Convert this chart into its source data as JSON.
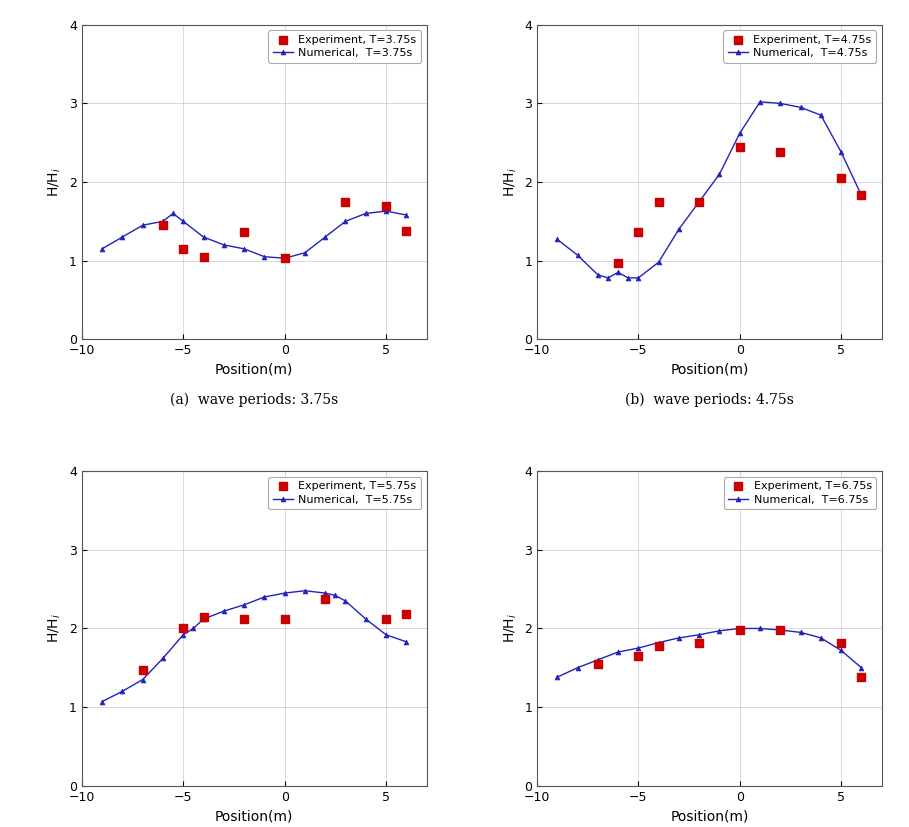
{
  "panels": [
    {
      "title": "Experiment, T=3.75s",
      "title2": "Numerical,  T=3.75s",
      "label": "(a)  wave periods: 3.75s",
      "exp_x": [
        -6,
        -5,
        -4,
        -2,
        0,
        3,
        5,
        6
      ],
      "exp_y": [
        1.45,
        1.15,
        1.05,
        1.37,
        1.03,
        1.75,
        1.7,
        1.38
      ],
      "num_x": [
        -9,
        -8,
        -7,
        -6,
        -5.5,
        -5,
        -4,
        -3,
        -2,
        -1,
        0,
        1,
        2,
        3,
        4,
        5,
        6
      ],
      "num_y": [
        1.15,
        1.3,
        1.45,
        1.5,
        1.6,
        1.5,
        1.3,
        1.2,
        1.15,
        1.05,
        1.03,
        1.1,
        1.3,
        1.5,
        1.6,
        1.63,
        1.58
      ]
    },
    {
      "title": "Experiment, T=4.75s",
      "title2": "Numerical,  T=4.75s",
      "label": "(b)  wave periods: 4.75s",
      "exp_x": [
        -6,
        -5,
        -4,
        -2,
        0,
        2,
        5,
        6
      ],
      "exp_y": [
        0.97,
        1.37,
        1.75,
        1.75,
        2.45,
        2.38,
        2.05,
        1.83
      ],
      "num_x": [
        -9,
        -8,
        -7,
        -6.5,
        -6,
        -5.5,
        -5,
        -4,
        -3,
        -2,
        -1,
        0,
        1,
        2,
        3,
        4,
        5,
        6
      ],
      "num_y": [
        1.27,
        1.07,
        0.82,
        0.78,
        0.85,
        0.78,
        0.78,
        0.98,
        1.4,
        1.75,
        2.1,
        2.62,
        3.02,
        3.0,
        2.95,
        2.85,
        2.38,
        1.83
      ]
    },
    {
      "title": "Experiment, T=5.75s",
      "title2": "Numerical,  T=5.75s",
      "label": "(c)  wave periods: 5.75s",
      "exp_x": [
        -7,
        -5,
        -4,
        -2,
        0,
        2,
        5,
        6
      ],
      "exp_y": [
        1.47,
        2.0,
        2.15,
        2.12,
        2.12,
        2.38,
        2.12,
        2.18
      ],
      "num_x": [
        -9,
        -8,
        -7,
        -6,
        -5,
        -4.5,
        -4,
        -3,
        -2,
        -1,
        0,
        1,
        2,
        2.5,
        3,
        4,
        5,
        6
      ],
      "num_y": [
        1.07,
        1.2,
        1.35,
        1.62,
        1.92,
        2.0,
        2.12,
        2.22,
        2.3,
        2.4,
        2.45,
        2.48,
        2.45,
        2.42,
        2.35,
        2.12,
        1.92,
        1.83
      ]
    },
    {
      "title": "Experiment, T=6.75s",
      "title2": "Numerical,  T=6.75s",
      "label": "(d)  wave periods: 6.75s",
      "exp_x": [
        -7,
        -5,
        -4,
        -2,
        0,
        2,
        5,
        6
      ],
      "exp_y": [
        1.55,
        1.65,
        1.78,
        1.82,
        1.98,
        1.98,
        1.82,
        1.38
      ],
      "num_x": [
        -9,
        -8,
        -7,
        -6,
        -5,
        -4,
        -3,
        -2,
        -1,
        0,
        1,
        2,
        3,
        4,
        5,
        6
      ],
      "num_y": [
        1.38,
        1.5,
        1.6,
        1.7,
        1.75,
        1.82,
        1.88,
        1.92,
        1.97,
        2.0,
        2.0,
        1.98,
        1.95,
        1.88,
        1.72,
        1.5
      ]
    }
  ],
  "xlim": [
    -10,
    7
  ],
  "ylim": [
    0,
    4
  ],
  "xticks": [
    -10,
    -5,
    0,
    5
  ],
  "yticks": [
    0,
    1,
    2,
    3,
    4
  ],
  "xlabel": "Position(m)",
  "ylabel": "H/H$_i$",
  "exp_color": "#cc0000",
  "num_color": "#2222bb",
  "bg_color": "#ffffff",
  "grid_color": "#b0b0cc",
  "legend_sq_color": "#cc0000",
  "figsize": [
    9.09,
    8.27
  ],
  "dpi": 100
}
